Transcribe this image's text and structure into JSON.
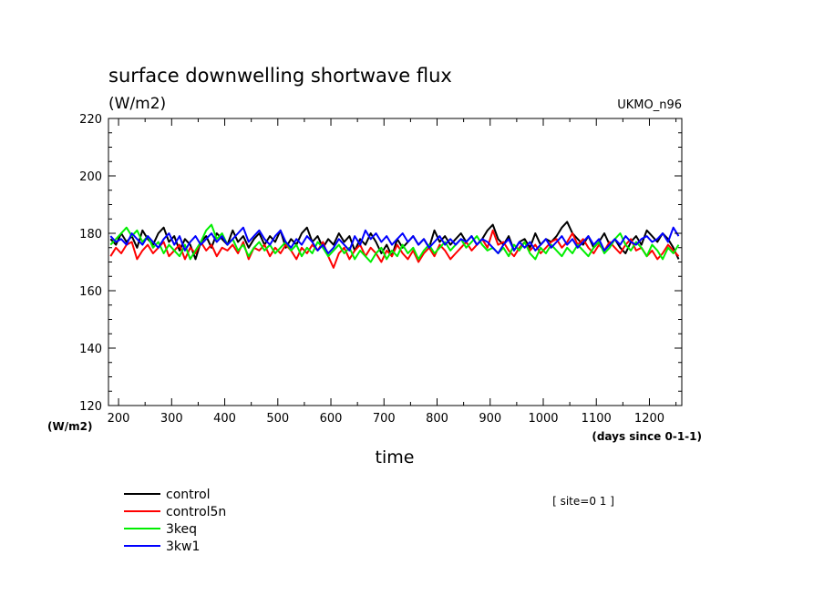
{
  "chart_data": {
    "type": "line",
    "title": "surface downwelling shortwave flux",
    "units_label": "(W/m2)",
    "model_label": "UKMO_n96",
    "site_label": "[ site=0 1 ]",
    "xlabel": "time",
    "xunits": "(days since 0-1-1)",
    "yunits_corner": "(W/m2)",
    "xlim": [
      181,
      1261
    ],
    "ylim": [
      120,
      220
    ],
    "x_ticks": [
      200,
      300,
      400,
      500,
      600,
      700,
      800,
      900,
      1000,
      1100,
      1200
    ],
    "y_ticks": [
      120,
      140,
      160,
      180,
      200,
      220
    ],
    "x": [
      185,
      195,
      205,
      215,
      225,
      235,
      245,
      255,
      265,
      275,
      285,
      295,
      305,
      315,
      325,
      335,
      345,
      355,
      365,
      375,
      385,
      395,
      405,
      415,
      425,
      435,
      445,
      455,
      465,
      475,
      485,
      495,
      505,
      515,
      525,
      535,
      545,
      555,
      565,
      575,
      585,
      595,
      605,
      615,
      625,
      635,
      645,
      655,
      665,
      675,
      685,
      695,
      705,
      715,
      725,
      735,
      745,
      755,
      765,
      775,
      785,
      795,
      805,
      815,
      825,
      835,
      845,
      855,
      865,
      875,
      885,
      895,
      905,
      915,
      925,
      935,
      945,
      955,
      965,
      975,
      985,
      995,
      1005,
      1015,
      1025,
      1035,
      1045,
      1055,
      1065,
      1075,
      1085,
      1095,
      1105,
      1115,
      1125,
      1135,
      1145,
      1155,
      1165,
      1175,
      1185,
      1195,
      1205,
      1215,
      1225,
      1235,
      1245,
      1255
    ],
    "series": [
      {
        "name": "control",
        "color": "#000000",
        "values": [
          178,
          176,
          180,
          177,
          179,
          175,
          181,
          178,
          176,
          180,
          182,
          177,
          179,
          174,
          178,
          176,
          171,
          177,
          179,
          175,
          180,
          178,
          176,
          181,
          177,
          179,
          175,
          178,
          180,
          176,
          179,
          177,
          181,
          175,
          178,
          176,
          180,
          182,
          177,
          179,
          175,
          178,
          176,
          180,
          177,
          179,
          174,
          178,
          176,
          180,
          177,
          173,
          176,
          172,
          178,
          175,
          177,
          179,
          176,
          178,
          175,
          181,
          177,
          179,
          176,
          178,
          180,
          177,
          179,
          176,
          178,
          181,
          183,
          178,
          176,
          179,
          174,
          177,
          178,
          175,
          180,
          176,
          178,
          177,
          179,
          182,
          184,
          180,
          178,
          176,
          179,
          175,
          177,
          180,
          176,
          178,
          175,
          173,
          177,
          179,
          176,
          181,
          179,
          177,
          180,
          178,
          175,
          171
        ]
      },
      {
        "name": "control5n",
        "color": "#ff0000",
        "values": [
          172,
          175,
          173,
          176,
          177,
          171,
          174,
          176,
          173,
          175,
          177,
          172,
          174,
          176,
          171,
          175,
          173,
          177,
          174,
          176,
          172,
          175,
          174,
          176,
          173,
          177,
          171,
          175,
          174,
          176,
          172,
          175,
          173,
          176,
          174,
          171,
          175,
          173,
          176,
          174,
          177,
          172,
          168,
          173,
          175,
          171,
          174,
          176,
          172,
          175,
          173,
          170,
          174,
          172,
          176,
          173,
          171,
          174,
          170,
          173,
          175,
          172,
          176,
          174,
          171,
          173,
          175,
          177,
          174,
          176,
          178,
          175,
          181,
          176,
          177,
          174,
          172,
          175,
          177,
          174,
          176,
          173,
          175,
          177,
          178,
          175,
          177,
          180,
          176,
          178,
          175,
          173,
          176,
          174,
          177,
          175,
          173,
          176,
          178,
          174,
          175,
          172,
          174,
          171,
          173,
          176,
          174,
          172
        ]
      },
      {
        "name": "3keq",
        "color": "#00ee00",
        "values": [
          176,
          178,
          180,
          182,
          179,
          181,
          177,
          179,
          175,
          177,
          173,
          176,
          174,
          172,
          176,
          171,
          174,
          177,
          181,
          183,
          178,
          180,
          176,
          178,
          174,
          176,
          172,
          175,
          177,
          174,
          176,
          173,
          175,
          177,
          174,
          176,
          172,
          175,
          173,
          177,
          175,
          172,
          174,
          176,
          173,
          175,
          171,
          174,
          172,
          170,
          173,
          175,
          171,
          174,
          172,
          176,
          173,
          175,
          171,
          174,
          176,
          173,
          175,
          177,
          174,
          176,
          178,
          175,
          177,
          179,
          176,
          174,
          175,
          173,
          175,
          172,
          176,
          174,
          177,
          173,
          171,
          175,
          173,
          176,
          174,
          172,
          175,
          173,
          176,
          174,
          172,
          175,
          177,
          173,
          175,
          178,
          180,
          176,
          174,
          177,
          175,
          172,
          176,
          174,
          171,
          175,
          173,
          176
        ]
      },
      {
        "name": "3kw1",
        "color": "#0000ff",
        "values": [
          179,
          177,
          178,
          176,
          180,
          178,
          176,
          179,
          177,
          175,
          178,
          180,
          176,
          179,
          174,
          177,
          179,
          176,
          178,
          180,
          177,
          179,
          176,
          178,
          180,
          182,
          177,
          179,
          181,
          178,
          176,
          179,
          181,
          177,
          175,
          178,
          176,
          179,
          177,
          174,
          176,
          173,
          175,
          178,
          176,
          174,
          179,
          176,
          181,
          178,
          180,
          177,
          179,
          176,
          178,
          180,
          177,
          179,
          176,
          178,
          175,
          177,
          179,
          176,
          178,
          176,
          178,
          177,
          179,
          176,
          178,
          177,
          175,
          173,
          176,
          178,
          174,
          177,
          175,
          177,
          174,
          176,
          178,
          175,
          177,
          179,
          176,
          178,
          175,
          177,
          179,
          176,
          178,
          174,
          176,
          178,
          176,
          179,
          177,
          176,
          178,
          179,
          177,
          178,
          180,
          177,
          182,
          179
        ]
      }
    ]
  }
}
